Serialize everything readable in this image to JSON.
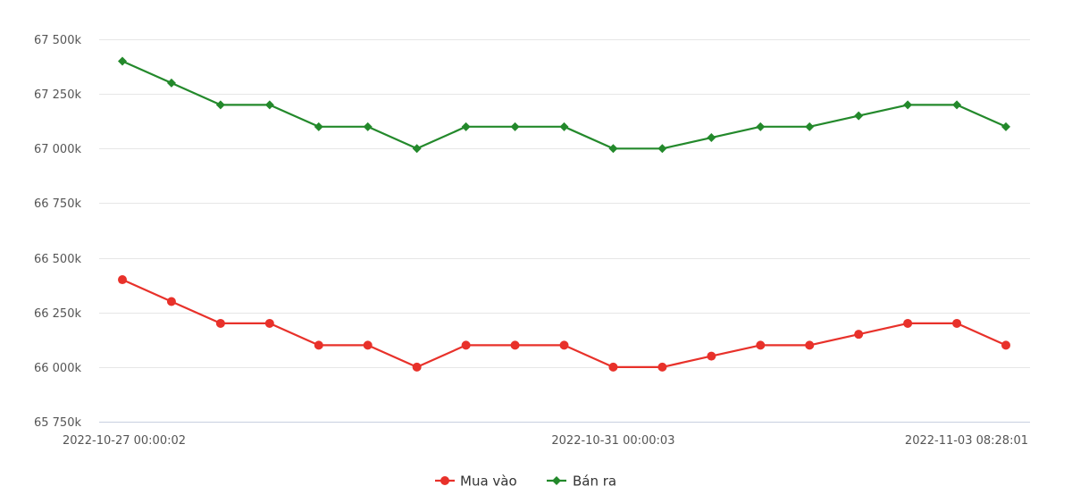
{
  "chart_data": {
    "type": "line",
    "y_tick_labels": [
      "65 750k",
      "66 000k",
      "66 250k",
      "66 500k",
      "66 750k",
      "67 000k",
      "67 250k",
      "67 500k"
    ],
    "y_ticks": [
      65750,
      66000,
      66250,
      66500,
      66750,
      67000,
      67250,
      67500
    ],
    "ylim": [
      65750,
      67500
    ],
    "x_tick_labels": [
      {
        "label": "2022-10-27 00:00:02",
        "index": 0
      },
      {
        "label": "2022-10-31 00:00:03",
        "index": 10
      },
      {
        "label": "2022-11-03 08:28:01",
        "index": 18
      }
    ],
    "point_count": 19,
    "grid": true,
    "legend_position": "bottom-center",
    "series": [
      {
        "name": "Mua vào",
        "color": "#e8312a",
        "marker": "circle",
        "values": [
          66400,
          66300,
          66200,
          66200,
          66100,
          66100,
          66000,
          66100,
          66100,
          66100,
          66000,
          66000,
          66050,
          66100,
          66100,
          66150,
          66200,
          66200,
          66100
        ]
      },
      {
        "name": "Bán ra",
        "color": "#23892b",
        "marker": "diamond",
        "values": [
          67400,
          67300,
          67200,
          67200,
          67100,
          67100,
          67000,
          67100,
          67100,
          67100,
          67000,
          67000,
          67050,
          67100,
          67100,
          67150,
          67200,
          67200,
          67100
        ]
      }
    ]
  }
}
